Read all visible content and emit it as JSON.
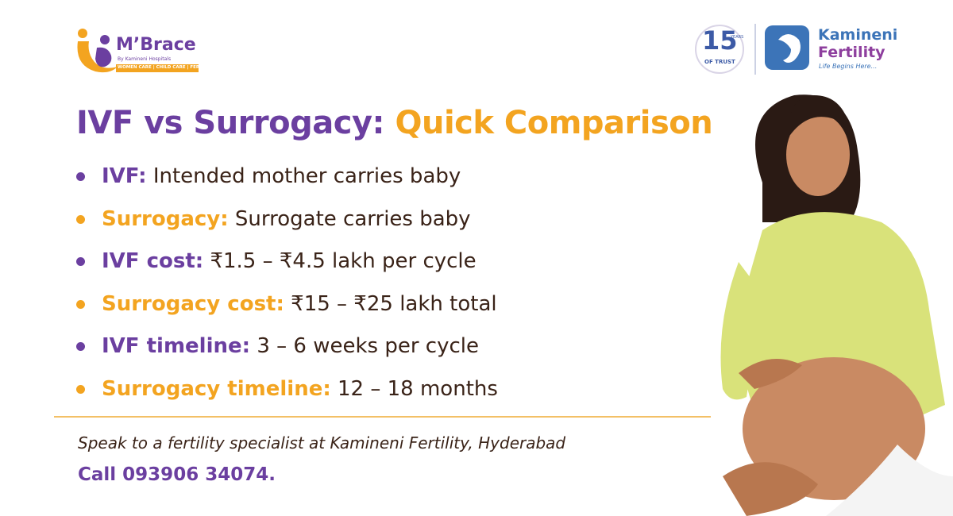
{
  "logo": {
    "name": "M’Brace",
    "tagline": "By Kamineni Hospitals",
    "services": "WOMEN CARE | CHILD CARE | FERTILITY"
  },
  "badge": {
    "number": "15",
    "unit": "YEARS",
    "caption": "OF TRUST"
  },
  "partner": {
    "name_line1": "Kamineni",
    "name_line2": "Fertility",
    "tagline": "Life Begins Here..."
  },
  "title": {
    "part1": "IVF vs Surrogacy:",
    "part2": "Quick Comparison"
  },
  "items": [
    {
      "label": "IVF:",
      "text": "Intended mother carries baby"
    },
    {
      "label": "Surrogacy:",
      "text": "Surrogate carries baby"
    },
    {
      "label": "IVF cost:",
      "text": "₹1.5 – ₹4.5 lakh per cycle"
    },
    {
      "label": "Surrogacy cost:",
      "text": "₹15 – ₹25 lakh total"
    },
    {
      "label": "IVF timeline:",
      "text": "3 – 6 weeks per cycle"
    },
    {
      "label": "Surrogacy timeline:",
      "text": "12 – 18 months"
    }
  ],
  "footer": {
    "note": "Speak to a fertility specialist at Kamineni Fertility, Hyderabad",
    "call": "Call 093906 34074."
  }
}
